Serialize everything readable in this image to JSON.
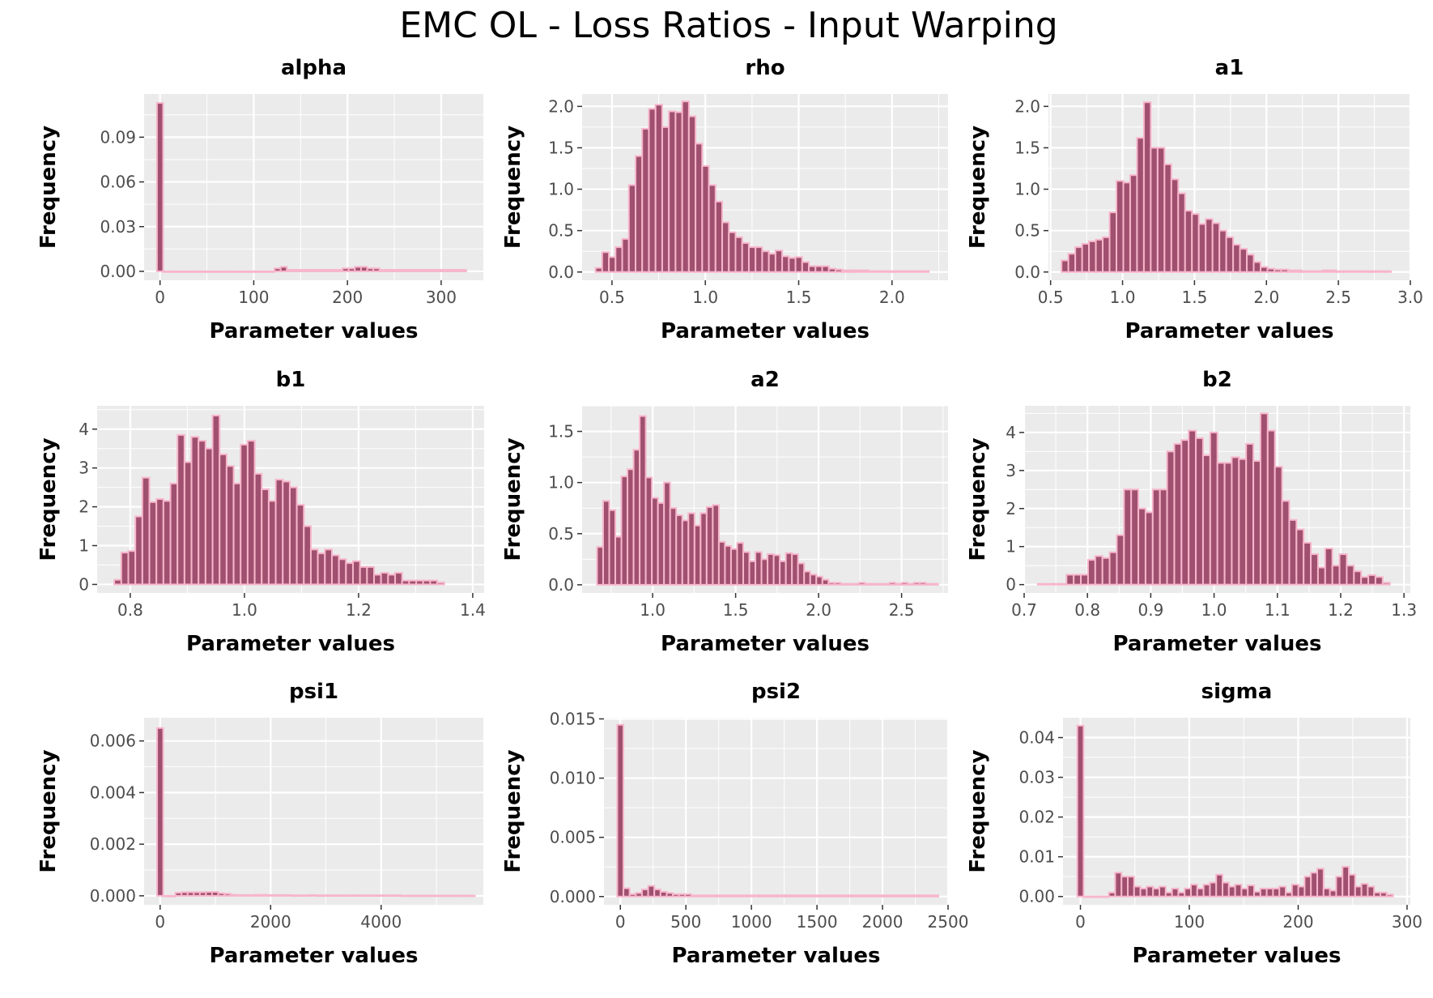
{
  "title": "EMC OL - Loss Ratios - Input Warping",
  "colors": {
    "panel_bg": "#ebebeb",
    "grid": "#ffffff",
    "bar_fill": "#a0506f",
    "bar_stroke": "#f7b6cb",
    "tick": "#333333"
  },
  "chart_data": [
    {
      "type": "bar",
      "title": "alpha",
      "xlabel": "Parameter values",
      "ylabel": "Frequency",
      "xlim": [
        -17,
        345
      ],
      "ylim": [
        -0.006,
        0.119
      ],
      "x_ticks": [
        0,
        100,
        200,
        300
      ],
      "x_tick_labels": [
        "0",
        "100",
        "200",
        "300"
      ],
      "y_ticks": [
        0,
        0.03,
        0.06,
        0.09
      ],
      "y_tick_labels": [
        "0.00",
        "0.03",
        "0.06",
        "0.09"
      ],
      "bin_width": 6.6,
      "x_start": -3.3,
      "values": [
        0.113,
        0,
        0,
        0,
        0,
        0,
        0,
        0,
        0,
        0,
        0,
        0,
        0,
        0,
        0,
        0,
        0,
        0,
        0,
        0.002,
        0.003,
        0.001,
        0.001,
        0.001,
        0.001,
        0.001,
        0.001,
        0.001,
        0.001,
        0.001,
        0.002,
        0.002,
        0.003,
        0.003,
        0.002,
        0.002,
        0.001,
        0.001,
        0.001,
        0.001,
        0.001,
        0.001,
        0.001,
        0.001,
        0.001,
        0.001,
        0.001,
        0.001,
        0.001,
        0.001
      ]
    },
    {
      "type": "bar",
      "title": "rho",
      "xlabel": "Parameter values",
      "ylabel": "Frequency",
      "xlim": [
        0.34,
        2.3
      ],
      "ylim": [
        -0.1,
        2.15
      ],
      "x_ticks": [
        0.5,
        1.0,
        1.5,
        2.0
      ],
      "x_tick_labels": [
        "0.5",
        "1.0",
        "1.5",
        "2.0"
      ],
      "y_ticks": [
        0,
        0.5,
        1.0,
        1.5,
        2.0
      ],
      "y_tick_labels": [
        "0.0",
        "0.5",
        "1.0",
        "1.5",
        "2.0"
      ],
      "bin_width": 0.0357,
      "x_start": 0.412,
      "values": [
        0.05,
        0.24,
        0.18,
        0.3,
        0.4,
        1.05,
        1.4,
        1.73,
        1.97,
        2.02,
        1.75,
        1.94,
        1.93,
        2.06,
        1.88,
        1.55,
        1.28,
        1.05,
        0.85,
        0.6,
        0.48,
        0.42,
        0.35,
        0.3,
        0.3,
        0.25,
        0.22,
        0.26,
        0.19,
        0.17,
        0.18,
        0.12,
        0.07,
        0.07,
        0.07,
        0.04,
        0.03,
        0.02,
        0.02,
        0.02,
        0.02,
        0.01,
        0.01,
        0.01,
        0.01,
        0.01,
        0.01,
        0.01,
        0.01,
        0.01
      ]
    },
    {
      "type": "bar",
      "title": "a1",
      "xlabel": "Parameter values",
      "ylabel": "Frequency",
      "xlim": [
        0.485,
        3.0
      ],
      "ylim": [
        -0.1,
        2.15
      ],
      "x_ticks": [
        0.5,
        1.0,
        1.5,
        2.0,
        2.5,
        3.0
      ],
      "x_tick_labels": [
        "0.5",
        "1.0",
        "1.5",
        "2.0",
        "2.5",
        "3.0"
      ],
      "y_ticks": [
        0,
        0.5,
        1.0,
        1.5,
        2.0
      ],
      "y_tick_labels": [
        "0.0",
        "0.5",
        "1.0",
        "1.5",
        "2.0"
      ],
      "bin_width": 0.0477,
      "x_start": 0.576,
      "values": [
        0.14,
        0.22,
        0.3,
        0.34,
        0.37,
        0.39,
        0.42,
        0.72,
        1.1,
        1.08,
        1.17,
        1.62,
        2.05,
        1.5,
        1.5,
        1.3,
        1.12,
        0.95,
        0.74,
        0.7,
        0.58,
        0.64,
        0.59,
        0.5,
        0.42,
        0.33,
        0.28,
        0.21,
        0.12,
        0.06,
        0.04,
        0.03,
        0.03,
        0.02,
        0.02,
        0.01,
        0.01,
        0.01,
        0.02,
        0.02,
        0.01,
        0.01,
        0.01,
        0.01,
        0.01,
        0.01,
        0.01,
        0.01
      ]
    },
    {
      "type": "bar",
      "title": "b1",
      "xlabel": "Parameter values",
      "ylabel": "Frequency",
      "xlim": [
        0.742,
        1.42
      ],
      "ylim": [
        -0.22,
        4.6
      ],
      "x_ticks": [
        0.8,
        1.0,
        1.2,
        1.4
      ],
      "x_tick_labels": [
        "0.8",
        "1.0",
        "1.2",
        "1.4"
      ],
      "y_ticks": [
        0,
        1,
        2,
        3,
        4
      ],
      "y_tick_labels": [
        "0",
        "1",
        "2",
        "3",
        "4"
      ],
      "bin_width": 0.0123,
      "x_start": 0.772,
      "values": [
        0.12,
        0.82,
        0.86,
        1.75,
        2.75,
        2.12,
        2.2,
        2.15,
        2.6,
        3.85,
        3.15,
        3.8,
        3.7,
        3.5,
        4.35,
        3.35,
        3.05,
        2.6,
        3.6,
        3.7,
        2.85,
        2.45,
        2.15,
        2.7,
        2.65,
        2.5,
        2.05,
        1.5,
        0.9,
        0.8,
        0.9,
        0.75,
        0.65,
        0.55,
        0.6,
        0.45,
        0.45,
        0.25,
        0.3,
        0.25,
        0.3,
        0.1,
        0.1,
        0.1,
        0.1,
        0.1,
        0.05
      ]
    },
    {
      "type": "bar",
      "title": "a2",
      "xlabel": "Parameter values",
      "ylabel": "Frequency",
      "xlim": [
        0.575,
        2.78
      ],
      "ylim": [
        -0.08,
        1.75
      ],
      "x_ticks": [
        1.0,
        1.5,
        2.0,
        2.5
      ],
      "x_tick_labels": [
        "1.0",
        "1.5",
        "2.0",
        "2.5"
      ],
      "y_ticks": [
        0,
        0.5,
        1.0,
        1.5
      ],
      "y_tick_labels": [
        "0.0",
        "0.5",
        "1.0",
        "1.5"
      ],
      "bin_width": 0.0367,
      "x_start": 0.665,
      "values": [
        0.37,
        0.82,
        0.73,
        0.47,
        1.06,
        1.13,
        1.32,
        1.65,
        1.05,
        0.85,
        0.8,
        1.0,
        0.75,
        0.68,
        0.63,
        0.7,
        0.58,
        0.7,
        0.76,
        0.78,
        0.42,
        0.38,
        0.35,
        0.41,
        0.32,
        0.23,
        0.32,
        0.25,
        0.3,
        0.29,
        0.23,
        0.31,
        0.3,
        0.21,
        0.13,
        0.1,
        0.08,
        0.05,
        0.02,
        0.02,
        0.01,
        0.01,
        0.01,
        0.02,
        0.01,
        0.01,
        0.01,
        0.01,
        0.02,
        0.01,
        0.02,
        0.01,
        0.02,
        0.02,
        0.01,
        0.01
      ]
    },
    {
      "type": "bar",
      "title": "b2",
      "xlabel": "Parameter values",
      "ylabel": "Frequency",
      "xlim": [
        0.7,
        1.31
      ],
      "ylim": [
        -0.22,
        4.7
      ],
      "x_ticks": [
        0.7,
        0.8,
        0.9,
        1.0,
        1.1,
        1.2,
        1.3
      ],
      "x_tick_labels": [
        "0.7",
        "0.8",
        "0.9",
        "1.0",
        "1.1",
        "1.2",
        "1.3"
      ],
      "y_ticks": [
        0,
        1,
        2,
        3,
        4
      ],
      "y_tick_labels": [
        "0",
        "1",
        "2",
        "3",
        "4"
      ],
      "bin_width": 0.01135,
      "x_start": 0.7215,
      "values": [
        0.02,
        0.02,
        0.02,
        0.02,
        0.26,
        0.26,
        0.26,
        0.65,
        0.75,
        0.7,
        0.85,
        1.3,
        2.5,
        2.5,
        2.0,
        1.9,
        2.5,
        2.5,
        3.5,
        3.7,
        3.8,
        4.05,
        3.85,
        3.4,
        4.0,
        3.2,
        3.2,
        3.35,
        3.3,
        3.7,
        3.25,
        4.5,
        4.05,
        3.1,
        2.2,
        1.7,
        1.45,
        1.1,
        0.8,
        0.45,
        0.95,
        0.5,
        0.8,
        0.5,
        0.35,
        0.2,
        0.25,
        0.2,
        0.05
      ]
    },
    {
      "type": "bar",
      "title": "psi1",
      "xlabel": "Parameter values",
      "ylabel": "Frequency",
      "xlim": [
        -290,
        5850
      ],
      "ylim": [
        -0.00035,
        0.0069
      ],
      "x_ticks": [
        0,
        2000,
        4000
      ],
      "x_tick_labels": [
        "0",
        "2000",
        "4000"
      ],
      "y_ticks": [
        0,
        0.002,
        0.004,
        0.006
      ],
      "y_tick_labels": [
        "0.000",
        "0.002",
        "0.004",
        "0.006"
      ],
      "bin_width": 110.6,
      "x_start": -55,
      "values": [
        0.0065,
        0,
        0,
        0.00012,
        0.00014,
        0.00014,
        0.00014,
        0.00014,
        0.00015,
        0.00015,
        0.0001,
        8e-05,
        4e-05,
        3e-05,
        3e-05,
        3e-05,
        4e-05,
        4e-05,
        3e-05,
        3e-05,
        3e-05,
        3e-05,
        2e-05,
        2e-05,
        2e-05,
        3e-05,
        2e-05,
        2e-05,
        2e-05,
        2e-05,
        2e-05,
        2e-05,
        2e-05,
        2e-05,
        2e-05,
        2e-05,
        2e-05,
        2e-05,
        2e-05,
        2e-05,
        1e-05,
        1e-05,
        1e-05,
        1e-05,
        1e-05,
        1e-05,
        1e-05,
        1e-05,
        1e-05,
        1e-05,
        1e-05,
        1e-05
      ]
    },
    {
      "type": "bar",
      "title": "psi2",
      "xlabel": "Parameter values",
      "ylabel": "Frequency",
      "xlim": [
        -125,
        2500
      ],
      "ylim": [
        -0.0007,
        0.0151
      ],
      "x_ticks": [
        0,
        500,
        1000,
        1500,
        2000,
        2500
      ],
      "x_tick_labels": [
        "0",
        "500",
        "1000",
        "1500",
        "2000",
        "2500"
      ],
      "y_ticks": [
        0,
        0.005,
        0.01,
        0.015
      ],
      "y_tick_labels": [
        "0.000",
        "0.005",
        "0.010",
        "0.015"
      ],
      "bin_width": 47.1,
      "x_start": -23.5,
      "values": [
        0.0145,
        0.0007,
        0.0002,
        0.0003,
        0.0006,
        0.0009,
        0.0006,
        0.0004,
        0.0003,
        0.0002,
        0.0002,
        0.0002,
        0.0001,
        0.0001,
        0.0001,
        0.0001,
        0.0001,
        0.0001,
        0.0001,
        0.0001,
        0.0001,
        0.0001,
        0.0001,
        0.0001,
        0.0001,
        0.0001,
        0.0001,
        0.0001,
        0.0001,
        0.0001,
        0.0001,
        0.0001,
        0.0001,
        0.0001,
        0.0001,
        0.0001,
        0.0001,
        0.0001,
        0.0001,
        0.0001,
        0.0001,
        0.0001,
        0.0001,
        0.0001,
        0.0001,
        0.0001,
        0.0001,
        0.0001,
        0.0001,
        0.0001,
        0.0001,
        0.0001
      ]
    },
    {
      "type": "bar",
      "title": "sigma",
      "xlabel": "Parameter values",
      "ylabel": "Frequency",
      "xlim": [
        -16,
        303
      ],
      "ylim": [
        -0.0021,
        0.045
      ],
      "x_ticks": [
        0,
        100,
        200,
        300
      ],
      "x_tick_labels": [
        "0",
        "100",
        "200",
        "300"
      ],
      "y_ticks": [
        0,
        0.01,
        0.02,
        0.03,
        0.04
      ],
      "y_tick_labels": [
        "0.00",
        "0.01",
        "0.02",
        "0.03",
        "0.04"
      ],
      "bin_width": 5.8,
      "x_start": -2.9,
      "values": [
        0.043,
        0,
        0,
        0,
        0,
        0.001,
        0.006,
        0.005,
        0.005,
        0.0025,
        0.002,
        0.0025,
        0.002,
        0.0025,
        0.001,
        0.002,
        0.001,
        0.002,
        0.003,
        0.002,
        0.003,
        0.0035,
        0.0055,
        0.0035,
        0.0025,
        0.003,
        0.002,
        0.0028,
        0.0012,
        0.002,
        0.002,
        0.002,
        0.0025,
        0.001,
        0.003,
        0.0025,
        0.005,
        0.006,
        0.007,
        0.002,
        0.0015,
        0.005,
        0.0075,
        0.0055,
        0.0025,
        0.0032,
        0.0025,
        0.001,
        0.001,
        0.0005
      ]
    }
  ]
}
